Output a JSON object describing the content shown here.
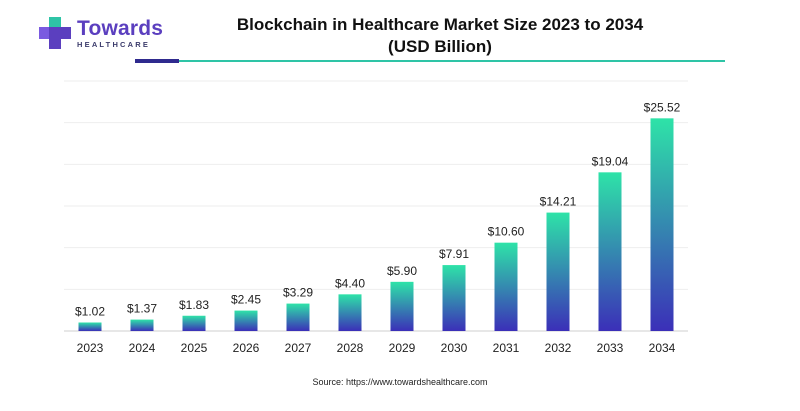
{
  "brand": {
    "name": "Towards",
    "tagline": "HEALTHCARE"
  },
  "colors": {
    "bar_top": "#2ee3a8",
    "bar_bottom": "#3b2fb8",
    "brand_purple": "#5b3fbf",
    "accent_teal": "#2ec4a6"
  },
  "source": "Source: https://www.towardshealthcare.com",
  "chart_data": {
    "type": "bar",
    "title": "Blockchain in Healthcare Market Size 2023 to 2034",
    "subtitle": "(USD Billion)",
    "categories": [
      "2023",
      "2024",
      "2025",
      "2026",
      "2027",
      "2028",
      "2029",
      "2030",
      "2031",
      "2032",
      "2033",
      "2034"
    ],
    "values": [
      1.02,
      1.37,
      1.83,
      2.45,
      3.29,
      4.4,
      5.9,
      7.91,
      10.6,
      14.21,
      19.04,
      25.52
    ],
    "data_labels": [
      "$1.02",
      "$1.37",
      "$1.83",
      "$2.45",
      "$3.29",
      "$4.40",
      "$5.90",
      "$7.91",
      "$10.60",
      "$14.21",
      "$19.04",
      "$25.52"
    ],
    "xlabel": "",
    "ylabel": "",
    "ylim": [
      0,
      30
    ],
    "grid": true,
    "legend": "none"
  }
}
